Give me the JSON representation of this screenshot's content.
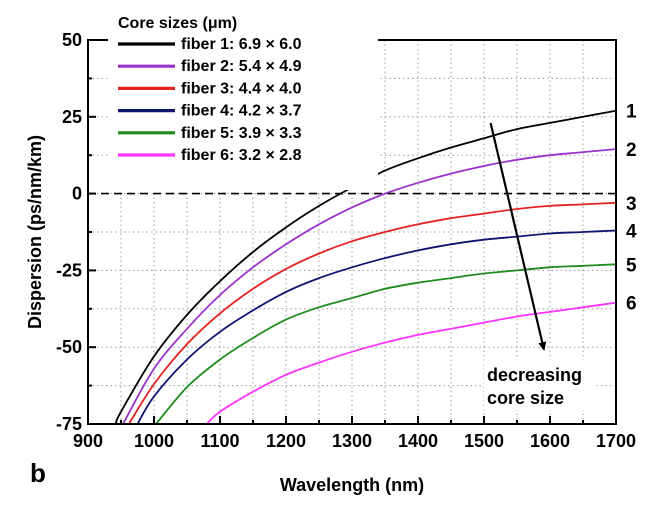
{
  "chart_data": {
    "type": "line",
    "panel_label": "b",
    "xlabel": "Wavelength (nm)",
    "ylabel": "Dispersion (ps/nm/km)",
    "xlim": [
      900,
      1700
    ],
    "ylim": [
      -75,
      50
    ],
    "xticks": [
      900,
      1000,
      1100,
      1200,
      1300,
      1400,
      1500,
      1600,
      1700
    ],
    "yticks": [
      50,
      25,
      0,
      -25,
      -50,
      -75
    ],
    "xtick_labels": [
      "900",
      "1000",
      "1100",
      "1200",
      "1300",
      "1400",
      "1500",
      "1600",
      "1700"
    ],
    "ytick_labels": [
      "50",
      "25",
      "0",
      "-25",
      "-50",
      "-75"
    ],
    "grid": true,
    "zero_line": {
      "y": 0,
      "style": "dashed",
      "color": "#000000"
    },
    "legend_title": "Core sizes (μm)",
    "legend_position": "top-left",
    "series": [
      {
        "name": "fiber 1: 6.9 × 6.0",
        "curve_label": "1",
        "color": "#000000",
        "x": [
          942,
          950,
          1000,
          1050,
          1100,
          1150,
          1200,
          1250,
          1300,
          1350,
          1400,
          1450,
          1500,
          1550,
          1600,
          1650,
          1700
        ],
        "y": [
          -75,
          -71,
          -53,
          -39.5,
          -28.5,
          -19,
          -11,
          -4,
          2,
          7.5,
          11.5,
          15,
          18,
          21,
          23,
          25,
          27
        ]
      },
      {
        "name": "fiber 2: 5.4 × 4.9",
        "curve_label": "2",
        "color": "#9933CC",
        "x": [
          953,
          1000,
          1050,
          1100,
          1150,
          1200,
          1250,
          1300,
          1350,
          1400,
          1450,
          1500,
          1550,
          1600,
          1650,
          1700
        ],
        "y": [
          -75,
          -57,
          -44,
          -33,
          -24,
          -16.5,
          -10,
          -4.5,
          0,
          3.5,
          6.5,
          9,
          11,
          12.5,
          13.5,
          14.5
        ]
      },
      {
        "name": "fiber 3: 4.4 × 4.0",
        "curve_label": "3",
        "color": "#E32222",
        "x": [
          962,
          1000,
          1050,
          1100,
          1150,
          1200,
          1250,
          1300,
          1350,
          1400,
          1450,
          1500,
          1550,
          1600,
          1650,
          1700
        ],
        "y": [
          -75,
          -62,
          -49,
          -39,
          -31,
          -24.5,
          -19.5,
          -15.5,
          -12.5,
          -10,
          -8,
          -6.5,
          -5,
          -4,
          -3.5,
          -3
        ]
      },
      {
        "name": "fiber 4: 4.2 × 3.7",
        "curve_label": "4",
        "color": "#101570",
        "x": [
          975,
          1000,
          1050,
          1100,
          1150,
          1200,
          1250,
          1300,
          1350,
          1400,
          1450,
          1500,
          1550,
          1600,
          1650,
          1700
        ],
        "y": [
          -75,
          -66,
          -54,
          -45,
          -38,
          -32,
          -27.5,
          -24,
          -21,
          -18.5,
          -16.5,
          -15,
          -14,
          -13,
          -12.5,
          -12
        ]
      },
      {
        "name": "fiber 5: 3.9 × 3.3",
        "curve_label": "5",
        "color": "#1E8C1E",
        "x": [
          1003,
          1050,
          1100,
          1150,
          1200,
          1250,
          1300,
          1350,
          1400,
          1450,
          1500,
          1550,
          1600,
          1650,
          1700
        ],
        "y": [
          -75,
          -63,
          -54,
          -47,
          -41,
          -37,
          -34,
          -31,
          -29,
          -27.5,
          -26,
          -25,
          -24,
          -23.5,
          -23
        ]
      },
      {
        "name": "fiber 6: 3.2 × 2.8",
        "curve_label": "6",
        "color": "#FF33FF",
        "x": [
          1080,
          1100,
          1150,
          1200,
          1250,
          1300,
          1350,
          1400,
          1450,
          1500,
          1550,
          1600,
          1650,
          1700
        ],
        "y": [
          -75,
          -71,
          -64.5,
          -59,
          -55,
          -51.5,
          -48.5,
          -46,
          -44,
          -42,
          -40,
          -38.5,
          -37,
          -35.5
        ]
      }
    ],
    "annotation": {
      "lines": [
        "decreasing",
        "core size"
      ],
      "arrow_from": [
        1510,
        23
      ],
      "arrow_to": [
        1590,
        -50
      ]
    }
  }
}
